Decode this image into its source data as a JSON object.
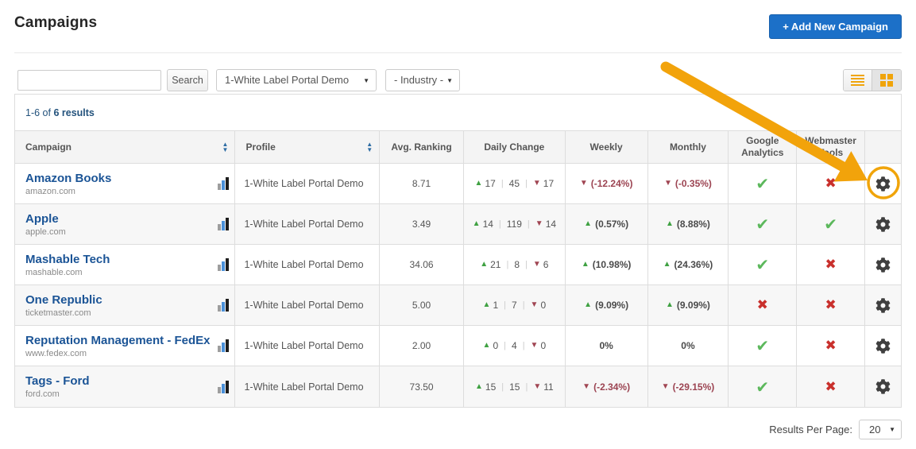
{
  "page": {
    "title": "Campaigns"
  },
  "header": {
    "add_button_label": "+ Add New Campaign"
  },
  "toolbar": {
    "search_value": "",
    "search_button_label": "Search",
    "profile_filter_value": "1-White Label Portal Demo",
    "industry_filter_value": "- Industry -"
  },
  "results_bar": {
    "range": "1-6 of",
    "count": "6 results"
  },
  "table": {
    "columns": [
      "Campaign",
      "Profile",
      "Avg. Ranking",
      "Daily Change",
      "Weekly",
      "Monthly",
      "Google Analytics",
      "Webmaster Tools"
    ],
    "rows": [
      {
        "name": "Amazon Books",
        "domain": "amazon.com",
        "profile": "1-White Label Portal Demo",
        "avg_ranking": "8.71",
        "daily_up": "17",
        "daily_same": "45",
        "daily_down": "17",
        "weekly": {
          "dir": "down",
          "text": "(-12.24%)"
        },
        "monthly": {
          "dir": "down",
          "text": "(-0.35%)"
        },
        "google_analytics": true,
        "webmaster_tools": false
      },
      {
        "name": "Apple",
        "domain": "apple.com",
        "profile": "1-White Label Portal Demo",
        "avg_ranking": "3.49",
        "daily_up": "14",
        "daily_same": "119",
        "daily_down": "14",
        "weekly": {
          "dir": "up",
          "text": "(0.57%)"
        },
        "monthly": {
          "dir": "up",
          "text": "(8.88%)"
        },
        "google_analytics": true,
        "webmaster_tools": true
      },
      {
        "name": "Mashable Tech",
        "domain": "mashable.com",
        "profile": "1-White Label Portal Demo",
        "avg_ranking": "34.06",
        "daily_up": "21",
        "daily_same": "8",
        "daily_down": "6",
        "weekly": {
          "dir": "up",
          "text": "(10.98%)"
        },
        "monthly": {
          "dir": "up",
          "text": "(24.36%)"
        },
        "google_analytics": true,
        "webmaster_tools": false
      },
      {
        "name": "One Republic",
        "domain": "ticketmaster.com",
        "profile": "1-White Label Portal Demo",
        "avg_ranking": "5.00",
        "daily_up": "1",
        "daily_same": "7",
        "daily_down": "0",
        "weekly": {
          "dir": "up",
          "text": "(9.09%)"
        },
        "monthly": {
          "dir": "up",
          "text": "(9.09%)"
        },
        "google_analytics": false,
        "webmaster_tools": false
      },
      {
        "name": "Reputation Management - FedEx",
        "domain": "www.fedex.com",
        "profile": "1-White Label Portal Demo",
        "avg_ranking": "2.00",
        "daily_up": "0",
        "daily_same": "4",
        "daily_down": "0",
        "weekly": {
          "dir": "none",
          "text": "0%"
        },
        "monthly": {
          "dir": "none",
          "text": "0%"
        },
        "google_analytics": true,
        "webmaster_tools": false
      },
      {
        "name": "Tags - Ford",
        "domain": "ford.com",
        "profile": "1-White Label Portal Demo",
        "avg_ranking": "73.50",
        "daily_up": "15",
        "daily_same": "15",
        "daily_down": "11",
        "weekly": {
          "dir": "down",
          "text": "(-2.34%)"
        },
        "monthly": {
          "dir": "down",
          "text": "(-29.15%)"
        },
        "google_analytics": true,
        "webmaster_tools": false
      }
    ]
  },
  "footer": {
    "results_per_page_label": "Results Per Page:",
    "results_per_page_value": "20"
  },
  "annotation": {
    "description": "orange arrow and circle highlighting settings gear of first row",
    "color": "#F2A30B"
  },
  "icons": {
    "up_triangle": "▲",
    "down_triangle": "▼",
    "check": "✔",
    "cross": "✖",
    "caret_down": "▼"
  },
  "colors": {
    "button_blue": "#1C70C8",
    "link_blue": "#1B5496",
    "accent_orange": "#F0A40A",
    "success_green": "#5CB85C",
    "danger_red": "#C9302C",
    "up_green": "#3FA142",
    "down_maroon": "#A04552"
  }
}
